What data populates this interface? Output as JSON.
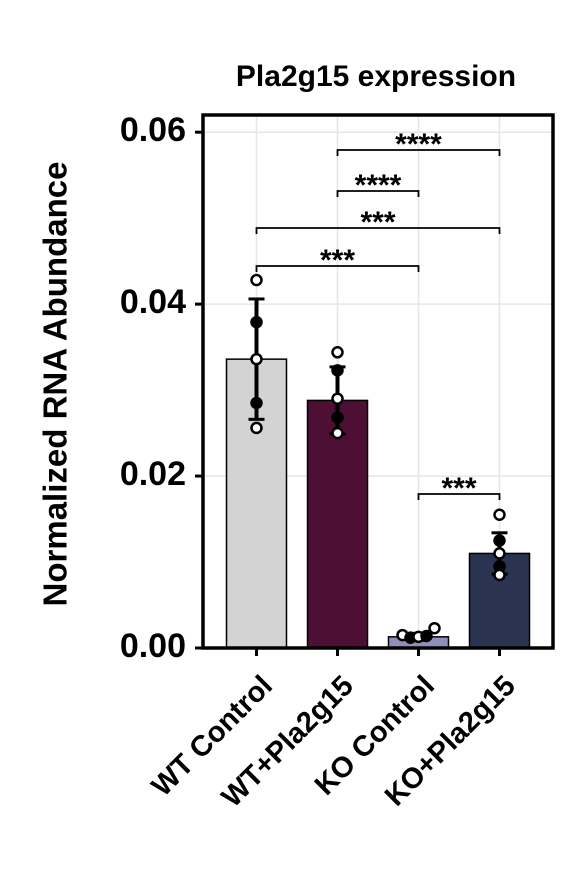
{
  "chart_data": {
    "type": "bar",
    "title": "Pla2g15 expression",
    "y_label": "Normalized RNA Abundance",
    "categories": [
      "WT Control",
      "WT+Pla2g15",
      "KO Control",
      "KO+Pla2g15"
    ],
    "values": [
      0.0336,
      0.0288,
      0.0013,
      0.011
    ],
    "errors": [
      0.007,
      0.0039,
      0.0004,
      0.0024
    ],
    "points": [
      [
        0.0428,
        0.0379,
        0.0336,
        0.0285,
        0.0256
      ],
      [
        0.0344,
        0.0323,
        0.029,
        0.0268,
        0.025
      ],
      [
        0.0015,
        0.0012,
        0.0013,
        0.0014,
        0.0023
      ],
      [
        0.0155,
        0.0125,
        0.011,
        0.0095,
        0.0085
      ]
    ],
    "colors": [
      "#d3d3d3",
      "#4d0f33",
      "#8f8fba",
      "#2b3352"
    ],
    "ylim": [
      0,
      0.062
    ],
    "yticks": [
      {
        "value": 0,
        "label": "0.00"
      },
      {
        "value": 0.02,
        "label": "0.02"
      },
      {
        "value": 0.04,
        "label": "0.04"
      },
      {
        "value": 0.06,
        "label": "0.06"
      }
    ],
    "grid": true,
    "comparisons": [
      {
        "from": 1,
        "to": 3,
        "label": "****"
      },
      {
        "from": 1,
        "to": 2,
        "label": "****"
      },
      {
        "from": 0,
        "to": 3,
        "label": "***"
      },
      {
        "from": 0,
        "to": 2,
        "label": "***"
      },
      {
        "from": 2,
        "to": 3,
        "label": "***"
      }
    ]
  }
}
